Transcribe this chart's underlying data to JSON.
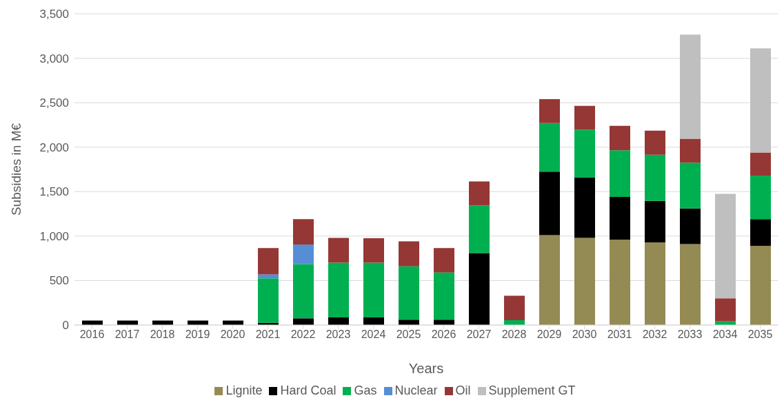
{
  "chart_data": {
    "type": "bar",
    "stacked": true,
    "xlabel": "Years",
    "ylabel": "Subsidies in M€",
    "categories": [
      "2016",
      "2017",
      "2018",
      "2019",
      "2020",
      "2021",
      "2022",
      "2023",
      "2024",
      "2025",
      "2026",
      "2027",
      "2028",
      "2029",
      "2030",
      "2031",
      "2032",
      "2033",
      "2034",
      "2035"
    ],
    "series": [
      {
        "name": "Lignite",
        "color": "#948a54",
        "values": [
          null,
          null,
          null,
          null,
          null,
          null,
          null,
          null,
          null,
          null,
          null,
          null,
          null,
          1010,
          980,
          960,
          930,
          910,
          null,
          890
        ]
      },
      {
        "name": "Hard Coal",
        "color": "#000000",
        "values": [
          50,
          50,
          50,
          50,
          50,
          25,
          75,
          85,
          85,
          60,
          60,
          810,
          null,
          715,
          680,
          480,
          465,
          400,
          null,
          300
        ]
      },
      {
        "name": "Gas",
        "color": "#00b050",
        "values": [
          null,
          null,
          null,
          null,
          null,
          500,
          610,
          615,
          615,
          600,
          530,
          535,
          55,
          545,
          535,
          525,
          520,
          515,
          40,
          490
        ]
      },
      {
        "name": "Nuclear",
        "color": "#558ed5",
        "values": [
          null,
          null,
          null,
          null,
          null,
          45,
          220,
          null,
          null,
          null,
          null,
          null,
          null,
          null,
          null,
          null,
          null,
          null,
          null,
          null
        ]
      },
      {
        "name": "Oil",
        "color": "#953735",
        "values": [
          null,
          null,
          null,
          null,
          null,
          295,
          285,
          280,
          275,
          280,
          275,
          270,
          275,
          270,
          270,
          275,
          270,
          270,
          260,
          260
        ]
      },
      {
        "name": "Supplement GT",
        "color": "#bfbfbf",
        "values": [
          null,
          null,
          null,
          null,
          null,
          null,
          null,
          null,
          null,
          null,
          null,
          null,
          null,
          null,
          null,
          null,
          null,
          1170,
          1175,
          1170
        ]
      }
    ],
    "ylim": [
      0,
      3500
    ],
    "yticks": [
      0,
      500,
      {
        "value": 1000,
        "label": "1,000"
      },
      {
        "value": 1500,
        "label": "1,500"
      },
      {
        "value": 2000,
        "label": "2,000"
      },
      {
        "value": 2500,
        "label": "2,500"
      },
      {
        "value": 3000,
        "label": "3,000"
      },
      {
        "value": 3500,
        "label": "3,500"
      }
    ],
    "grid": "y",
    "legend": "bottom"
  }
}
